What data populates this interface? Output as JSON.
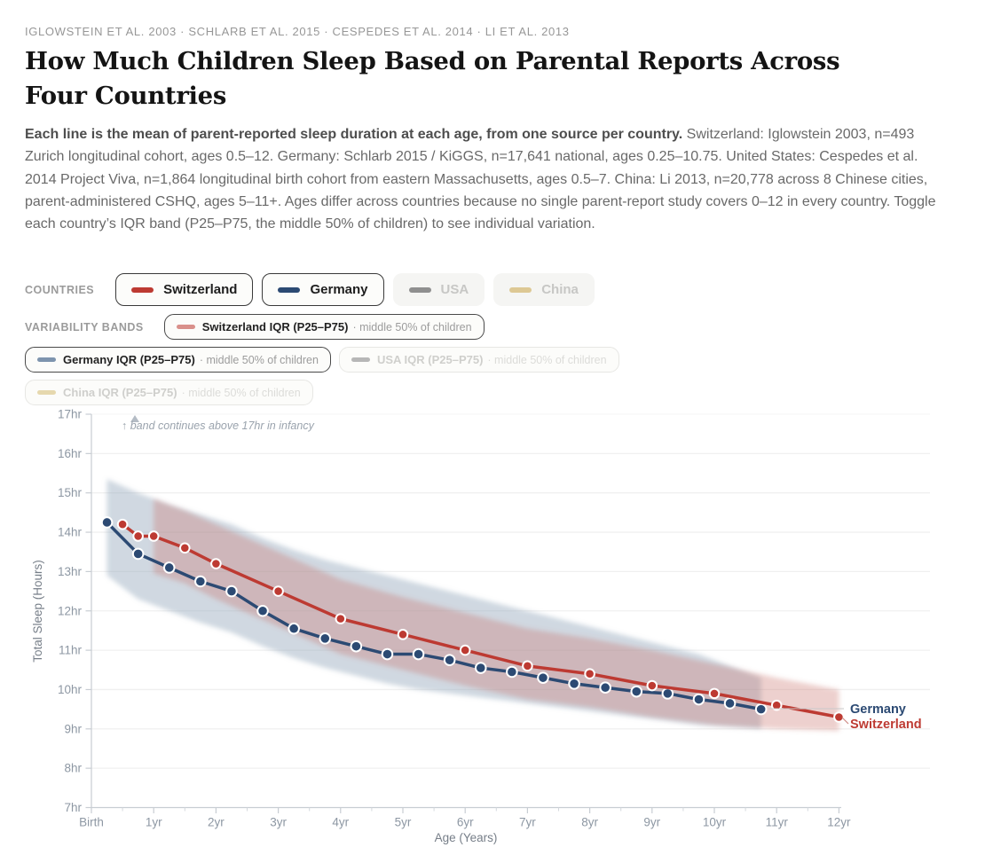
{
  "header": {
    "eyebrow": "IGLOWSTEIN ET AL. 2003 · SCHLARB ET AL. 2015 · CESPEDES ET AL. 2014 · LI ET AL. 2013",
    "title": "How Much Children Sleep Based on Parental Reports Across Four Countries",
    "description_lead": "Each line is the mean of parent-reported sleep duration at each age, from one source per country.",
    "description_rest": " Switzerland: Iglowstein 2003, n=493 Zurich longitudinal cohort, ages 0.5–12. Germany: Schlarb 2015 / KiGGS, n=17,641 national, ages 0.25–10.75. United States: Cespedes et al. 2014 Project Viva, n=1,864 longitudinal birth cohort from eastern Massachusetts, ages 0.5–7. China: Li 2013, n=20,778 across 8 Chinese cities, parent-administered CSHQ, ages 5–11+. Ages differ across countries because no single parent-report study covers 0–12 in every country. Toggle each country’s IQR band (P25–P75, the middle 50% of children) to see individual variation."
  },
  "controls": {
    "countries_label": "COUNTRIES",
    "countries": [
      {
        "label": "Switzerland",
        "color": "#bd3a32",
        "active": true
      },
      {
        "label": "Germany",
        "color": "#2c4a73",
        "active": true
      },
      {
        "label": "USA",
        "color": "#8f8f8f",
        "active": false
      },
      {
        "label": "China",
        "color": "#ddc894",
        "active": false
      }
    ],
    "bands_label": "VARIABILITY BANDS",
    "bands": [
      {
        "label": "Switzerland IQR (P25–P75)",
        "suffix": "· middle 50% of children",
        "color": "#d9908b",
        "active": true
      },
      {
        "label": "Germany IQR (P25–P75)",
        "suffix": "· middle 50% of children",
        "color": "#7e94ae",
        "active": true
      },
      {
        "label": "USA IQR (P25–P75)",
        "suffix": "· middle 50% of children",
        "color": "#b7b7b7",
        "active": false
      },
      {
        "label": "China IQR (P25–P75)",
        "suffix": "· middle 50% of children",
        "color": "#e6d8ae",
        "active": false
      }
    ]
  },
  "chart_data": {
    "type": "line",
    "xlabel": "Age (Years)",
    "ylabel": "Total Sleep (Hours)",
    "xlim": [
      0,
      12
    ],
    "ylim": [
      7,
      17
    ],
    "grid": "horizontal-only",
    "annotation": "↑ band continues above 17hr in infancy",
    "x_ticks": [
      {
        "v": 0,
        "label": "Birth"
      },
      {
        "v": 1,
        "label": "1yr"
      },
      {
        "v": 2,
        "label": "2yr"
      },
      {
        "v": 3,
        "label": "3yr"
      },
      {
        "v": 4,
        "label": "4yr"
      },
      {
        "v": 5,
        "label": "5yr"
      },
      {
        "v": 6,
        "label": "6yr"
      },
      {
        "v": 7,
        "label": "7yr"
      },
      {
        "v": 8,
        "label": "8yr"
      },
      {
        "v": 9,
        "label": "9yr"
      },
      {
        "v": 10,
        "label": "10yr"
      },
      {
        "v": 11,
        "label": "11yr"
      },
      {
        "v": 12,
        "label": "12yr"
      }
    ],
    "x_minor_ticks": [
      0.5,
      1.5,
      2.5,
      3.5,
      4.5,
      5.5,
      6.5,
      7.5,
      8.5,
      9.5,
      10.5,
      11.5
    ],
    "y_ticks": [
      {
        "v": 7,
        "label": "7hr"
      },
      {
        "v": 8,
        "label": "8hr"
      },
      {
        "v": 9,
        "label": "9hr"
      },
      {
        "v": 10,
        "label": "10hr"
      },
      {
        "v": 11,
        "label": "11hr"
      },
      {
        "v": 12,
        "label": "12hr"
      },
      {
        "v": 13,
        "label": "13hr"
      },
      {
        "v": 14,
        "label": "14hr"
      },
      {
        "v": 15,
        "label": "15hr"
      },
      {
        "v": 16,
        "label": "16hr"
      },
      {
        "v": 17,
        "label": "17hr"
      }
    ],
    "bands": [
      {
        "name": "Germany IQR (P25–P75)",
        "color": "#8fa1b8",
        "opacity": 0.42,
        "x": [
          0.25,
          0.75,
          1.25,
          1.75,
          2.25,
          2.75,
          3.25,
          3.75,
          4.25,
          4.75,
          5.25,
          5.75,
          6.25,
          6.75,
          7.25,
          7.75,
          8.25,
          8.75,
          9.25,
          9.75,
          10.25,
          10.75
        ],
        "p75": [
          15.35,
          15.0,
          14.7,
          14.45,
          14.2,
          13.85,
          13.55,
          13.3,
          13.1,
          12.9,
          12.7,
          12.5,
          12.3,
          12.1,
          11.9,
          11.7,
          11.5,
          11.3,
          11.1,
          10.9,
          10.6,
          10.3
        ],
        "p25": [
          12.9,
          12.3,
          12.0,
          11.7,
          11.45,
          11.1,
          10.8,
          10.55,
          10.35,
          10.15,
          10.0,
          9.9,
          9.8,
          9.7,
          9.6,
          9.5,
          9.4,
          9.3,
          9.2,
          9.1,
          9.05,
          9.0
        ]
      },
      {
        "name": "Switzerland IQR (P25–P75)",
        "color": "#c96f6a",
        "opacity": 0.33,
        "x": [
          1,
          1.5,
          2,
          3,
          4,
          5,
          6,
          7,
          8,
          9,
          10,
          11,
          12
        ],
        "p75": [
          14.85,
          14.55,
          14.2,
          13.5,
          12.8,
          12.35,
          11.95,
          11.55,
          11.3,
          11.0,
          10.65,
          10.3,
          10.0
        ],
        "p25": [
          12.95,
          12.7,
          12.3,
          11.6,
          10.9,
          10.5,
          10.1,
          9.75,
          9.55,
          9.3,
          9.1,
          9.0,
          8.95
        ]
      }
    ],
    "series": [
      {
        "name": "Germany",
        "color": "#2c4a73",
        "x": [
          0.25,
          0.75,
          1.25,
          1.75,
          2.25,
          2.75,
          3.25,
          3.75,
          4.25,
          4.75,
          5.25,
          5.75,
          6.25,
          6.75,
          7.25,
          7.75,
          8.25,
          8.75,
          9.25,
          9.75,
          10.25,
          10.75
        ],
        "y": [
          14.25,
          13.45,
          13.1,
          12.75,
          12.5,
          12.0,
          11.55,
          11.3,
          11.1,
          10.9,
          10.9,
          10.75,
          10.55,
          10.45,
          10.3,
          10.15,
          10.05,
          9.95,
          9.9,
          9.75,
          9.65,
          9.5
        ]
      },
      {
        "name": "Switzerland",
        "color": "#bd3a32",
        "x": [
          0.5,
          0.75,
          1,
          1.5,
          2,
          3,
          4,
          5,
          6,
          7,
          8,
          9,
          10,
          11,
          12
        ],
        "y": [
          14.2,
          13.9,
          13.9,
          13.6,
          13.2,
          12.5,
          11.8,
          11.4,
          11.0,
          10.6,
          10.4,
          10.1,
          9.9,
          9.6,
          9.3
        ]
      }
    ],
    "end_labels": [
      {
        "text": "Germany",
        "color": "#2c4a73"
      },
      {
        "text": "Switzerland",
        "color": "#bd3a32"
      }
    ]
  }
}
